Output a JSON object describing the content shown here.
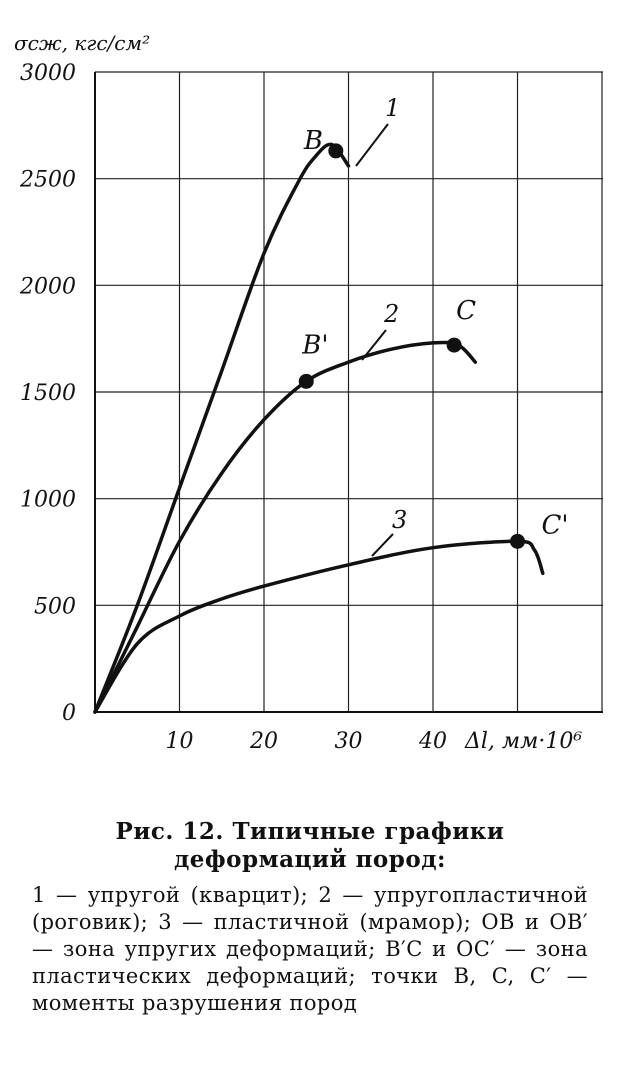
{
  "chart_data": {
    "type": "line",
    "ylabel": "σсж, кгс/см²",
    "xlabel": "Δl, мм·10⁶",
    "xlim": [
      0,
      60
    ],
    "ylim": [
      0,
      3000
    ],
    "x_ticks": [
      "10",
      "20",
      "30",
      "40"
    ],
    "y_ticks": [
      "0",
      "500",
      "1000",
      "1500",
      "2000",
      "2500",
      "3000"
    ],
    "grid": true,
    "series": [
      {
        "name": "1",
        "x": [
          0,
          5,
          10,
          15,
          20,
          24,
          26,
          28,
          30
        ],
        "y": [
          0,
          500,
          1050,
          1600,
          2150,
          2480,
          2600,
          2660,
          2560
        ]
      },
      {
        "name": "2",
        "x": [
          0,
          5,
          10,
          15,
          20,
          25,
          30,
          35,
          40,
          43,
          45
        ],
        "y": [
          0,
          400,
          800,
          1120,
          1370,
          1550,
          1640,
          1700,
          1730,
          1720,
          1640
        ]
      },
      {
        "name": "3",
        "x": [
          0,
          5,
          10,
          15,
          20,
          30,
          40,
          50,
          52,
          53
        ],
        "y": [
          0,
          320,
          450,
          530,
          590,
          690,
          770,
          800,
          760,
          650
        ]
      }
    ],
    "points": [
      {
        "label": "B",
        "x": 28.5,
        "y": 2630
      },
      {
        "label": "B'",
        "x": 25,
        "y": 1550
      },
      {
        "label": "C",
        "x": 42.5,
        "y": 1720
      },
      {
        "label": "C'",
        "x": 50,
        "y": 800
      }
    ],
    "curve_labels": [
      "1",
      "2",
      "3"
    ]
  },
  "caption": {
    "title": "Рис. 12. Типичные графики деформаций пород:",
    "body": "1 — упругой (кварцит); 2 — упругопластичной (роговик); 3 — пластичной (мрамор); OB и OB′ — зона упругих деформаций; B′C и OC′ — зона пластических деформаций; точки B, C, C′ — моменты разрушения пород"
  }
}
